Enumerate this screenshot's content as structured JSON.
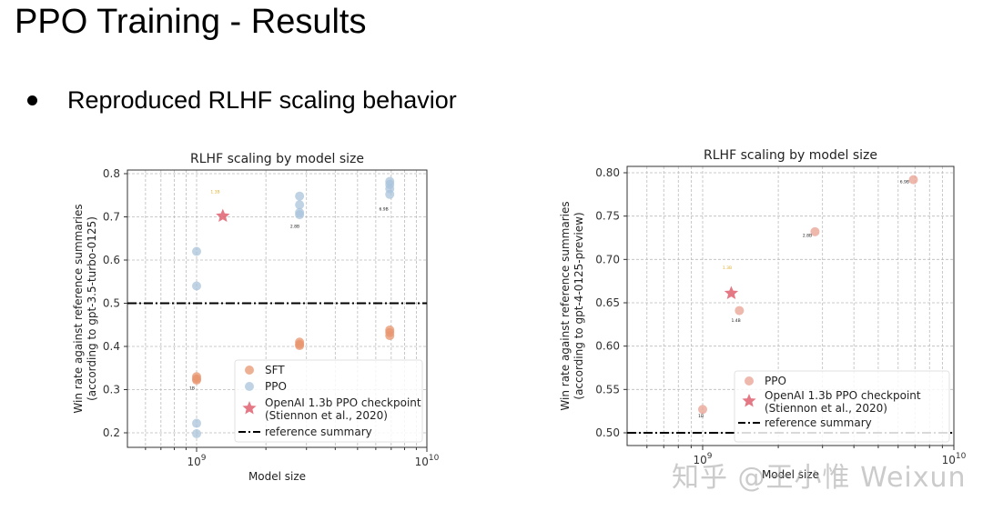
{
  "slide": {
    "title": "PPO Training - Results",
    "bullet": "Reproduced RLHF scaling behavior",
    "watermark": "知乎 @王小惟 Weixun"
  },
  "chart_data": [
    {
      "type": "scatter",
      "title": "RLHF scaling by model size",
      "xlabel": "Model size",
      "ylabel": "Win rate against reference summaries\n(according to gpt-3.5-turbo-0125)",
      "xscale": "log",
      "xticks": [
        "10^9",
        "10^10"
      ],
      "yticks": [
        "0.2",
        "0.3",
        "0.4",
        "0.5",
        "0.6",
        "0.7",
        "0.8"
      ],
      "ylim": [
        0.18,
        0.81
      ],
      "grid": true,
      "legend_position": "lower right",
      "legend": [
        "SFT",
        "PPO",
        "OpenAI 1.3b PPO checkpoint (Stiennon et al., 2020)",
        "reference summary"
      ],
      "series": [
        {
          "name": "SFT",
          "color": "#e8956f",
          "points": [
            [
              1000000000.0,
              0.33
            ],
            [
              1000000000.0,
              0.325
            ],
            [
              1000000000.0,
              0.322
            ],
            [
              2800000000.0,
              0.41
            ],
            [
              2800000000.0,
              0.405
            ],
            [
              2800000000.0,
              0.402
            ],
            [
              6900000000.0,
              0.438
            ],
            [
              6900000000.0,
              0.432
            ],
            [
              6900000000.0,
              0.425
            ]
          ]
        },
        {
          "name": "PPO",
          "color": "#a9c4dc",
          "points": [
            [
              1000000000.0,
              0.62
            ],
            [
              1000000000.0,
              0.54
            ],
            [
              1000000000.0,
              0.222
            ],
            [
              1000000000.0,
              0.198
            ],
            [
              2800000000.0,
              0.748
            ],
            [
              2800000000.0,
              0.728
            ],
            [
              2800000000.0,
              0.71
            ],
            [
              2800000000.0,
              0.705
            ],
            [
              6900000000.0,
              0.782
            ],
            [
              6900000000.0,
              0.775
            ],
            [
              6900000000.0,
              0.765
            ],
            [
              6900000000.0,
              0.752
            ]
          ]
        },
        {
          "name": "OpenAI 1.3b PPO checkpoint (Stiennon et al., 2020)",
          "color": "#e06070",
          "marker": "star",
          "points": [
            [
              1300000000.0,
              0.702
            ]
          ]
        },
        {
          "name": "reference summary",
          "type": "hline",
          "y": 0.5,
          "style": "dashdot",
          "color": "#000000"
        }
      ],
      "annotations": [
        {
          "text": "1.3B",
          "x": 1150000000.0,
          "y": 0.755,
          "color": "#e0b030"
        },
        {
          "text": "2.8B",
          "x": 2550000000.0,
          "y": 0.675
        },
        {
          "text": "6.9B",
          "x": 6200000000.0,
          "y": 0.715
        },
        {
          "text": "1B",
          "x": 930000000.0,
          "y": 0.3
        }
      ]
    },
    {
      "type": "scatter",
      "title": "RLHF scaling by model size",
      "xlabel": "Model size",
      "ylabel": "Win rate against reference summaries\n(according to gpt-4-0125-preview)",
      "xscale": "log",
      "xticks": [
        "10^9",
        "10^10"
      ],
      "yticks": [
        "0.50",
        "0.55",
        "0.60",
        "0.65",
        "0.70",
        "0.75",
        "0.80"
      ],
      "ylim": [
        0.485,
        0.805
      ],
      "grid": true,
      "legend_position": "lower right",
      "legend": [
        "PPO",
        "OpenAI 1.3b PPO checkpoint (Stiennon et al., 2020)",
        "reference summary"
      ],
      "series": [
        {
          "name": "PPO",
          "color": "#e8a090",
          "points": [
            [
              1000000000.0,
              0.527
            ],
            [
              1400000000.0,
              0.641
            ],
            [
              2800000000.0,
              0.732
            ],
            [
              6900000000.0,
              0.792
            ]
          ]
        },
        {
          "name": "OpenAI 1.3b PPO checkpoint (Stiennon et al., 2020)",
          "color": "#e06070",
          "marker": "star",
          "points": [
            [
              1300000000.0,
              0.661
            ]
          ]
        },
        {
          "name": "reference summary",
          "type": "hline",
          "y": 0.5,
          "style": "dashdot",
          "color": "#000000"
        }
      ],
      "annotations": [
        {
          "text": "1B",
          "x": 960000000.0,
          "y": 0.518
        },
        {
          "text": "1.3B",
          "x": 1200000000.0,
          "y": 0.689,
          "color": "#e0b030"
        },
        {
          "text": "1.4B",
          "x": 1300000000.0,
          "y": 0.628
        },
        {
          "text": "2.8B",
          "x": 2500000000.0,
          "y": 0.726
        },
        {
          "text": "6.9B",
          "x": 6100000000.0,
          "y": 0.788
        }
      ]
    }
  ]
}
